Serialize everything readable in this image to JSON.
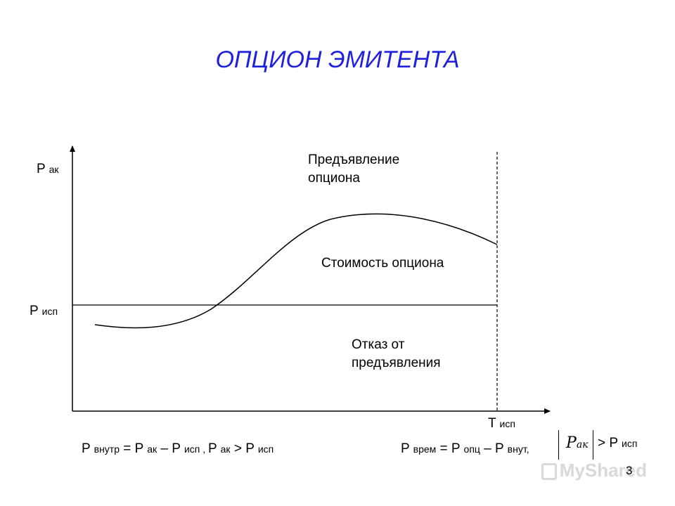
{
  "title": "ОПЦИОН ЭМИТЕНТА",
  "axes": {
    "y_label": {
      "main": "P",
      "sub": "ак"
    },
    "x_label": {
      "main": "T",
      "sub": "исп"
    },
    "strike_label": {
      "main": "P",
      "sub": "исп"
    }
  },
  "regions": {
    "exercise_line1": "Предъявление",
    "exercise_line2": "опциона",
    "option_value": "Стоимость опциона",
    "refusal_line1": "Отказ от",
    "refusal_line2": "предъявления"
  },
  "formulas": {
    "intrinsic": {
      "p1": "P",
      "s1": "внутр",
      "t1": " = P",
      "s2": "ак",
      "t2": " – P",
      "s3": "исп , ",
      "t3": "P",
      "s4": "ак",
      "t4": " > P",
      "s5": "исп"
    },
    "time": {
      "p1": "P",
      "s1": "врем",
      "t1": " = P",
      "s2": "опц",
      "t2": " – P",
      "s3": "внут,",
      "abs_main": "P",
      "abs_sub": "ак",
      "t3": "> P",
      "s4": "исп"
    }
  },
  "page_number": "3",
  "watermark": "MyShared",
  "colors": {
    "title": "#1f1fe0",
    "lines": "#000000",
    "watermark": "#d9d9d9"
  }
}
